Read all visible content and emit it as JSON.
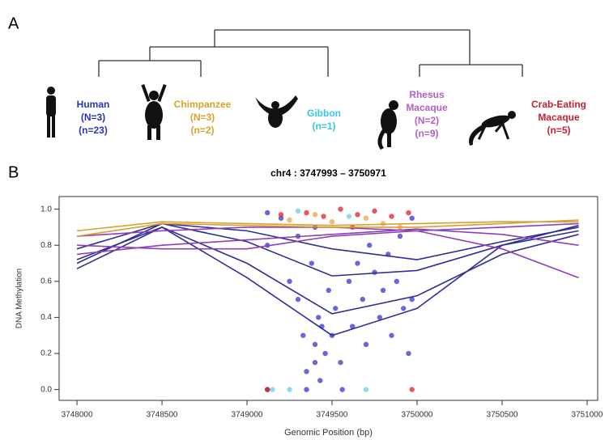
{
  "panel_a": {
    "label": "A",
    "taxa": [
      {
        "lines": [
          "Human",
          "(N=3)",
          "(n=23)"
        ],
        "color": "#2a35b0"
      },
      {
        "lines": [
          "Chimpanzee",
          "(N=3)",
          "(n=2)"
        ],
        "color": "#d9a22a"
      },
      {
        "lines": [
          "Gibbon",
          "(n=1)"
        ],
        "color": "#38c6e0"
      },
      {
        "lines": [
          "Rhesus",
          "Macaque",
          "(N=2)",
          "(n=9)"
        ],
        "color": "#b35fc4"
      },
      {
        "lines": [
          "Crab-Eating",
          "Macaque",
          "(n=5)"
        ],
        "color": "#c42234"
      }
    ]
  },
  "chart_data": {
    "type": "line",
    "panel_label": "B",
    "title": "chr4 : 3747993 – 3750971",
    "x_label": "Genomic Position (bp)",
    "y_label": "DNA Methylation",
    "xlim": [
      3747895,
      3751062
    ],
    "ylim": [
      -0.06,
      1.07
    ],
    "xticks": [
      3748000,
      3748500,
      3749000,
      3749500,
      3750000,
      3750500,
      3751000
    ],
    "yticks": [
      {
        "value": 0,
        "label": "0.0"
      },
      {
        "value": 0.2,
        "label": "0.2"
      },
      {
        "value": 0.4,
        "label": "0.4"
      },
      {
        "value": 0.6,
        "label": "0.6"
      },
      {
        "value": 0.8,
        "label": "0.8"
      },
      {
        "value": 1,
        "label": "1.0"
      }
    ],
    "series": [
      {
        "type": "scatter",
        "color": "#3535d0",
        "x": [
          3749120,
          3749120,
          3749120,
          3749200,
          3749250,
          3749300,
          3749330,
          3749350,
          3749350,
          3749380,
          3749400,
          3749400,
          3749420,
          3749430,
          3749440,
          3749460,
          3749480,
          3749500,
          3749520,
          3749550,
          3749560,
          3749600,
          3749620,
          3749650,
          3749680,
          3749700,
          3749720,
          3749750,
          3749780,
          3749800,
          3749830,
          3749850,
          3749880,
          3749900,
          3749920,
          3749950,
          3749970,
          3749970,
          3749400,
          3749300
        ],
        "values": [
          0.98,
          0.0,
          0.8,
          0.95,
          0.6,
          0.5,
          0.3,
          0.1,
          0.0,
          0.7,
          0.25,
          0.15,
          0.4,
          0.05,
          0.35,
          0.2,
          0.55,
          0.3,
          0.45,
          0.15,
          0.0,
          0.6,
          0.35,
          0.7,
          0.5,
          0.25,
          0.8,
          0.65,
          0.4,
          0.55,
          0.75,
          0.3,
          0.6,
          0.85,
          0.45,
          0.2,
          0.5,
          0.95,
          0.9,
          0.85
        ]
      },
      {
        "type": "scatter",
        "color": "#e02020",
        "x": [
          3749120,
          3749200,
          3749350,
          3749450,
          3749550,
          3749650,
          3749750,
          3749850,
          3749950,
          3749970,
          3749620
        ],
        "values": [
          0.0,
          0.97,
          0.98,
          0.96,
          1.0,
          0.97,
          0.99,
          0.96,
          0.98,
          0.0,
          0.9
        ]
      },
      {
        "type": "scatter",
        "color": "#f0a040",
        "x": [
          3749250,
          3749400,
          3749500,
          3749700,
          3749800,
          3749900
        ],
        "values": [
          0.94,
          0.97,
          0.93,
          0.95,
          0.92,
          0.9
        ]
      },
      {
        "type": "scatter",
        "color": "#60d0f0",
        "x": [
          3749150,
          3749300,
          3749600,
          3749250,
          3749700
        ],
        "values": [
          0.0,
          0.99,
          0.96,
          0.0,
          0.0
        ]
      },
      {
        "type": "line",
        "color": "#2e2e96",
        "x": [
          3748000,
          3748500,
          3749000,
          3749500,
          3750000,
          3750500,
          3750950
        ],
        "values": [
          0.7,
          0.92,
          0.82,
          0.63,
          0.66,
          0.8,
          0.88
        ]
      },
      {
        "type": "line",
        "color": "#2e2e96",
        "x": [
          3748000,
          3748500,
          3749000,
          3749500,
          3750000,
          3750500,
          3750950
        ],
        "values": [
          0.67,
          0.9,
          0.7,
          0.42,
          0.52,
          0.75,
          0.86
        ]
      },
      {
        "type": "line",
        "color": "#2e2e96",
        "x": [
          3748000,
          3748500,
          3749000,
          3749500,
          3750000,
          3750500,
          3750950
        ],
        "values": [
          0.72,
          0.9,
          0.62,
          0.3,
          0.45,
          0.8,
          0.91
        ]
      },
      {
        "type": "line",
        "color": "#2e2e96",
        "x": [
          3748000,
          3748500,
          3749000,
          3749500,
          3750000,
          3750500,
          3750950
        ],
        "values": [
          0.78,
          0.92,
          0.88,
          0.78,
          0.72,
          0.82,
          0.9
        ]
      },
      {
        "type": "line",
        "color": "#8e3fb8",
        "x": [
          3748000,
          3748500,
          3749000,
          3749500,
          3750000,
          3750500,
          3750950
        ],
        "values": [
          0.75,
          0.8,
          0.83,
          0.86,
          0.89,
          0.86,
          0.8
        ]
      },
      {
        "type": "line",
        "color": "#8e3fb8",
        "x": [
          3748000,
          3748500,
          3749000,
          3749500,
          3750000,
          3750500,
          3750950
        ],
        "values": [
          0.8,
          0.78,
          0.78,
          0.85,
          0.88,
          0.78,
          0.62
        ]
      },
      {
        "type": "line",
        "color": "#8e3fb8",
        "x": [
          3748000,
          3748500,
          3749000,
          3749500,
          3750000,
          3750500,
          3750950
        ],
        "values": [
          0.85,
          0.88,
          0.9,
          0.9,
          0.88,
          0.9,
          0.92
        ]
      },
      {
        "type": "line",
        "color": "#d9a030",
        "x": [
          3748000,
          3748500,
          3749000,
          3749500,
          3750000,
          3750500,
          3750950
        ],
        "values": [
          0.85,
          0.92,
          0.91,
          0.9,
          0.9,
          0.92,
          0.94
        ]
      },
      {
        "type": "line",
        "color": "#d9a030",
        "x": [
          3748000,
          3748500,
          3749000,
          3749500,
          3750000,
          3750500,
          3750950
        ],
        "values": [
          0.88,
          0.93,
          0.92,
          0.91,
          0.92,
          0.93,
          0.93
        ]
      }
    ]
  }
}
